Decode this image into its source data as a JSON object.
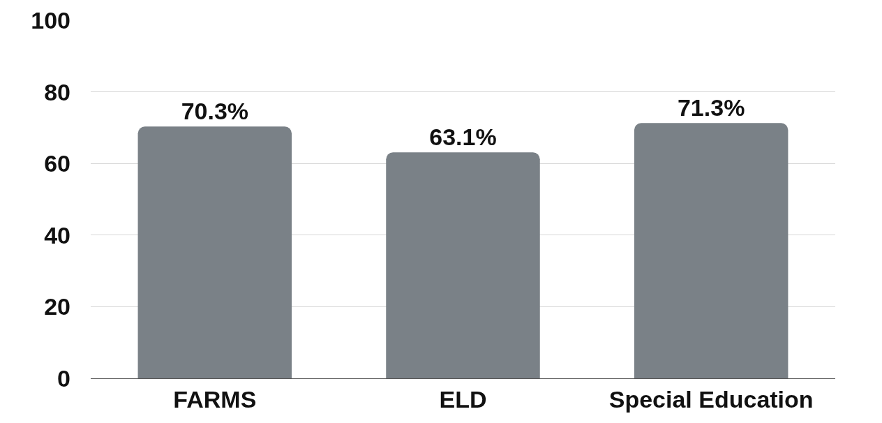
{
  "chart_data": {
    "type": "bar",
    "categories": [
      "FARMS",
      "ELD",
      "Special Education"
    ],
    "values": [
      70.3,
      63.1,
      71.3
    ],
    "value_labels": [
      "70.3%",
      "63.1%",
      "71.3%"
    ],
    "color": "#7a8187",
    "ylim": [
      0,
      100
    ],
    "yticks": [
      0,
      20,
      40,
      60,
      80,
      100
    ],
    "grid": "y"
  }
}
